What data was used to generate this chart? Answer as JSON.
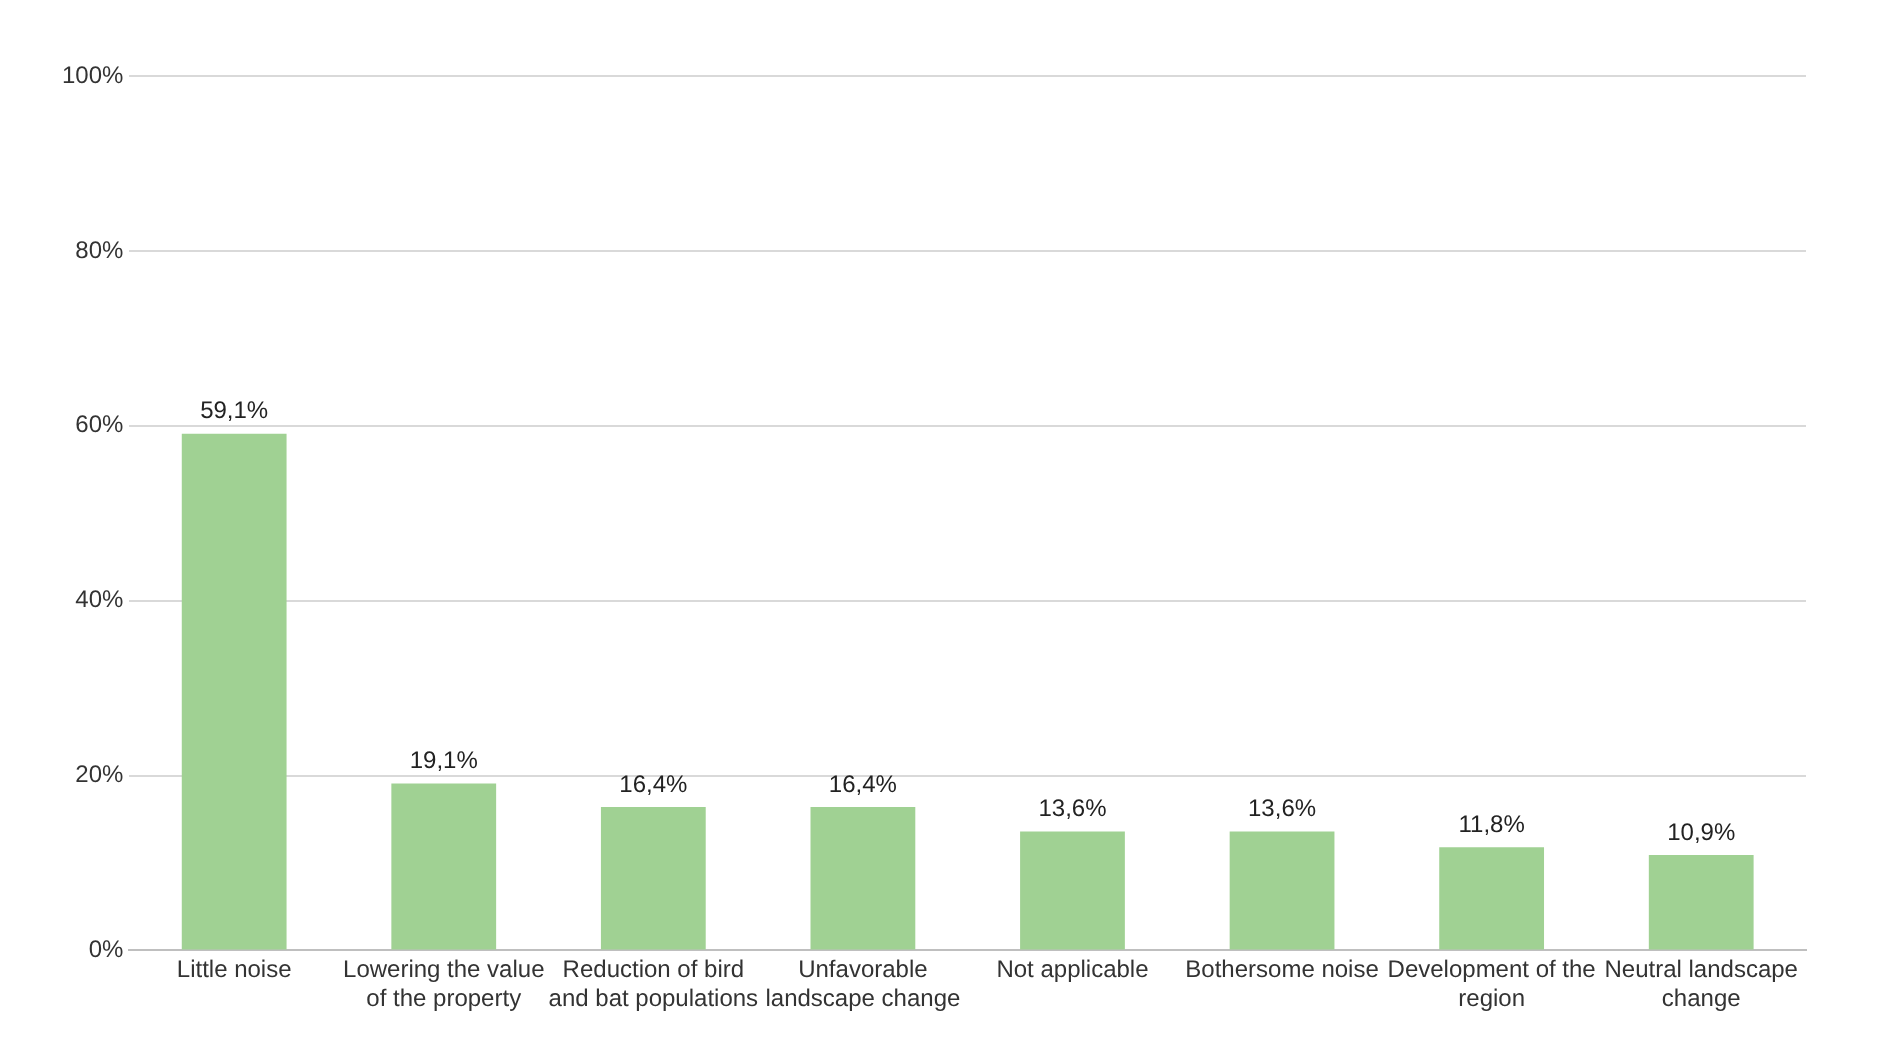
{
  "chart_data": {
    "type": "bar",
    "categories": [
      "Little noise",
      "Lowering the value of the property",
      "Reduction of bird and bat populations",
      "Unfavorable landscape change",
      "Not applicable",
      "Bothersome noise",
      "Development of the region",
      "Neutral landscape change"
    ],
    "values": [
      59.1,
      19.1,
      16.4,
      16.4,
      13.6,
      13.6,
      11.8,
      10.9
    ],
    "value_labels": [
      "59,1%",
      "19,1%",
      "16,4%",
      "16,4%",
      "13,6%",
      "13,6%",
      "11,8%",
      "10,9%"
    ],
    "color": "#a0d193",
    "ylim": [
      0,
      100
    ],
    "yticks": [
      {
        "value": 0,
        "label": "0%"
      },
      {
        "value": 20,
        "label": "20%"
      },
      {
        "value": 40,
        "label": "40%"
      },
      {
        "value": 60,
        "label": "60%"
      },
      {
        "value": 80,
        "label": "80%"
      },
      {
        "value": 100,
        "label": "100%"
      }
    ],
    "grid": "y",
    "legend": false
  }
}
